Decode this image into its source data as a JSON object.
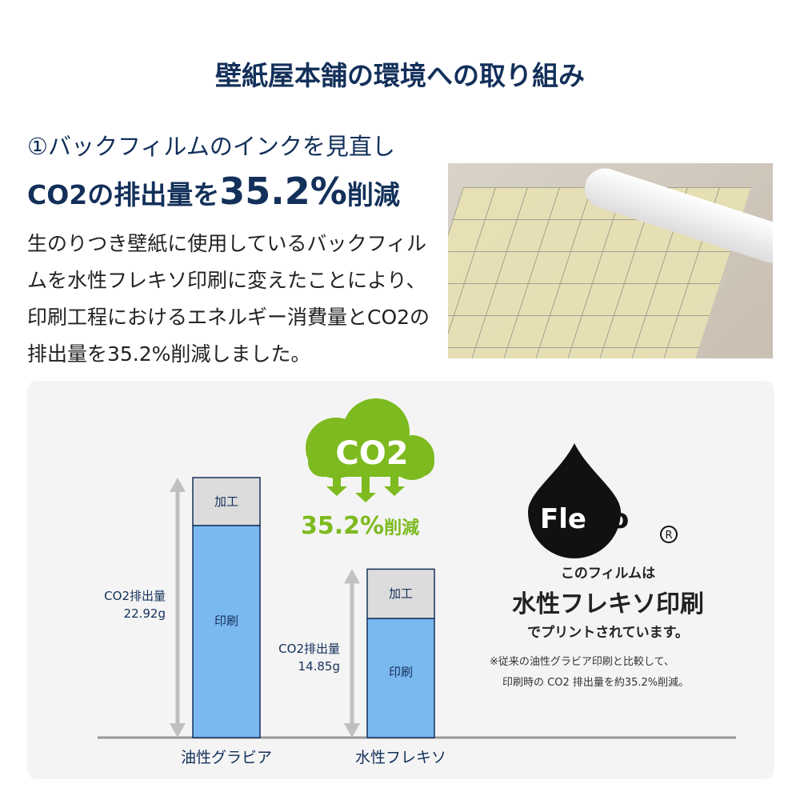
{
  "title": "壁紙屋本舗の環境への取り組み",
  "heading1": "①バックフィルムのインクを見直し",
  "heading2_pre": "CO2の排出量を",
  "heading2_big": "35.2%",
  "heading2_post": "削減",
  "body": "生のりつき壁紙に使用しているバックフィルムを水性フレキソ印刷に変えたことにより、印刷工程におけるエネルギー消費量とCO2の排出量を35.2%削減しました。",
  "cloud_text": "CO2",
  "reduction": "35.2%",
  "reduction_suffix": "削減",
  "flexo_logo": "Flexo®",
  "flexo_line1": "このフィルムは",
  "flexo_line2": "水性フレキソ印刷",
  "flexo_line3": "でプリントされています。",
  "note1": "※従来の油性グラビア印刷と比較して、",
  "note2": "印刷時の CO2 排出量を約35.2%削減。",
  "colors": {
    "navy": "#13305a",
    "green": "#7dba1f",
    "print": "#7ab8f0",
    "process": "#dcdcdc"
  },
  "chart_data": {
    "type": "bar",
    "stacked": true,
    "categories": [
      "油性グラビア",
      "水性フレキソ"
    ],
    "series": [
      {
        "name": "印刷",
        "values": [
          18.7,
          10.5
        ]
      },
      {
        "name": "加工",
        "values": [
          4.22,
          4.35
        ]
      }
    ],
    "totals": [
      {
        "label": "CO2排出量",
        "value": "22.92g"
      },
      {
        "label": "CO2排出量",
        "value": "14.85g"
      }
    ]
  }
}
